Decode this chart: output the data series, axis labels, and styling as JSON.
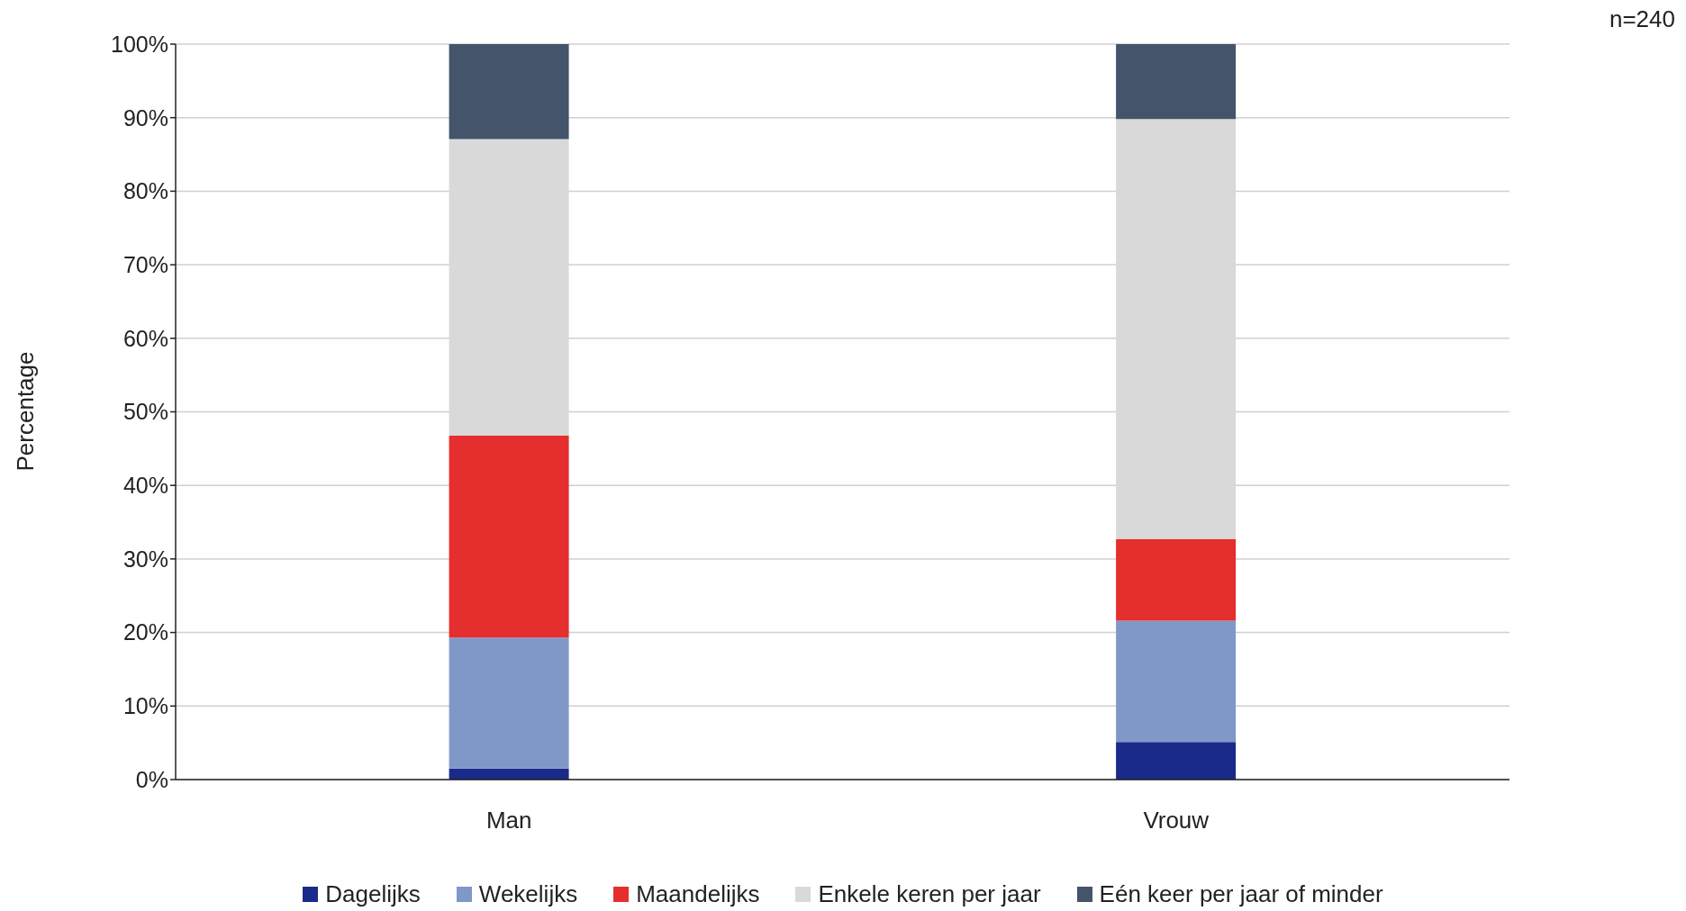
{
  "chart_data": {
    "type": "bar",
    "stacked": true,
    "ylabel": "Percentage",
    "annotations": [
      "n=240"
    ],
    "categories": [
      "Man",
      "Vrouw"
    ],
    "series": [
      {
        "name": "Dagelijks",
        "color": "#1a2a8a",
        "values": [
          1.5,
          5.1
        ]
      },
      {
        "name": "Wekelijks",
        "color": "#8098c8",
        "values": [
          17.8,
          16.5
        ]
      },
      {
        "name": "Maandelijks",
        "color": "#e52e2e",
        "values": [
          27.5,
          11.1
        ]
      },
      {
        "name": "Enkele keren per jaar",
        "color": "#d9d9d9",
        "values": [
          40.3,
          57.1
        ]
      },
      {
        "name": "Eén keer per jaar of minder",
        "color": "#44546a",
        "values": [
          12.9,
          10.2
        ]
      }
    ],
    "ylim": [
      0,
      100
    ],
    "yticks": [
      {
        "value": 0,
        "label": "0%"
      },
      {
        "value": 10,
        "label": "10%"
      },
      {
        "value": 20,
        "label": "20%"
      },
      {
        "value": 30,
        "label": "30%"
      },
      {
        "value": 40,
        "label": "40%"
      },
      {
        "value": 50,
        "label": "50%"
      },
      {
        "value": 60,
        "label": "60%"
      },
      {
        "value": 70,
        "label": "70%"
      },
      {
        "value": 80,
        "label": "80%"
      },
      {
        "value": 90,
        "label": "90%"
      },
      {
        "value": 100,
        "label": "100%"
      }
    ],
    "grid": "y",
    "legend": "bottom"
  }
}
